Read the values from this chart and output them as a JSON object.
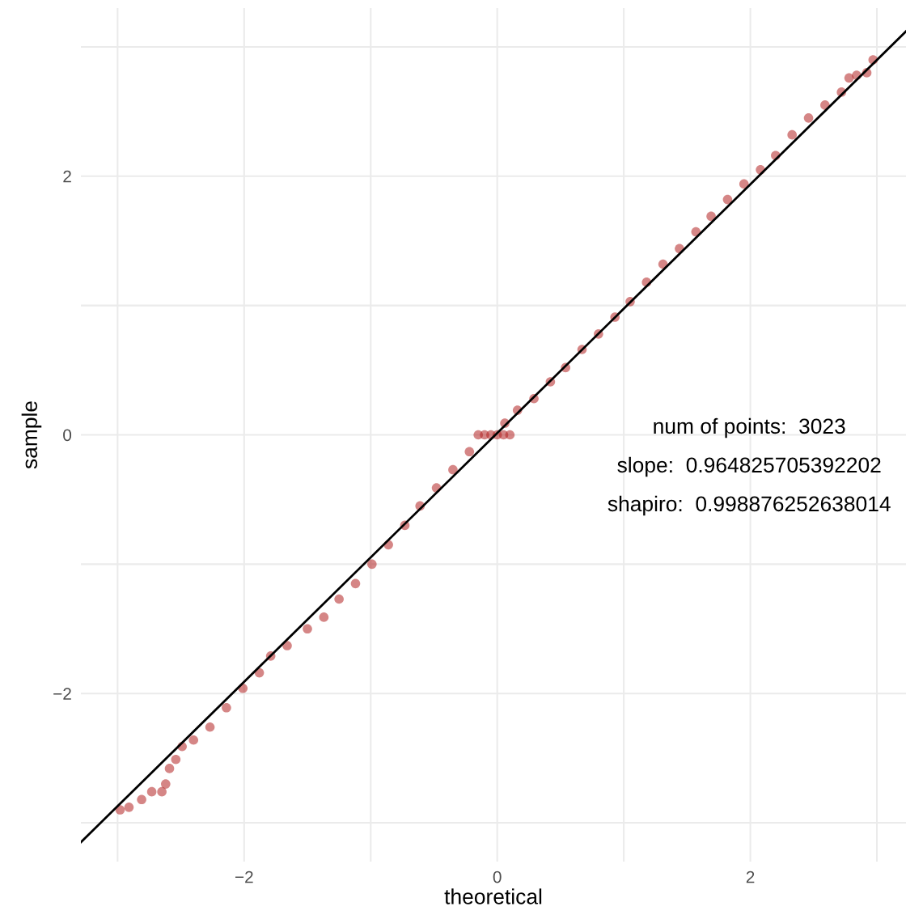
{
  "chart_data": {
    "type": "scatter",
    "xlabel": "theoretical",
    "ylabel": "sample",
    "xlim": [
      -3.29,
      3.23
    ],
    "ylim": [
      -3.3,
      3.3
    ],
    "xticks": [
      {
        "value": -3,
        "label": null
      },
      {
        "value": -2,
        "label": "−2"
      },
      {
        "value": -1,
        "label": null
      },
      {
        "value": 0,
        "label": "0"
      },
      {
        "value": 1,
        "label": null
      },
      {
        "value": 2,
        "label": "2"
      },
      {
        "value": 3,
        "label": null
      }
    ],
    "yticks": [
      {
        "value": -3,
        "label": null
      },
      {
        "value": -2,
        "label": "−2"
      },
      {
        "value": -1,
        "label": null
      },
      {
        "value": 0,
        "label": "0"
      },
      {
        "value": 1,
        "label": null
      },
      {
        "value": 2,
        "label": "2"
      },
      {
        "value": 3,
        "label": null
      }
    ],
    "grid": true,
    "legend": false,
    "series": [
      {
        "marker": "circle",
        "color": "#b22222",
        "x": [
          -2.98,
          -2.91,
          -2.81,
          -2.73,
          -2.65,
          -2.62,
          -2.59,
          -2.54,
          -2.49,
          -2.4,
          -2.27,
          -2.14,
          -2.01,
          -1.88,
          -1.79,
          -1.66,
          -1.5,
          -1.37,
          -1.25,
          -1.12,
          -0.99,
          -0.86,
          -0.73,
          -0.61,
          -0.48,
          -0.35,
          -0.22,
          -0.15,
          -0.1,
          -0.05,
          0.0,
          0.05,
          0.1,
          0.06,
          0.16,
          0.29,
          0.42,
          0.54,
          0.67,
          0.8,
          0.93,
          1.05,
          1.18,
          1.31,
          1.44,
          1.57,
          1.69,
          1.82,
          1.95,
          2.08,
          2.2,
          2.33,
          2.46,
          2.59,
          2.72,
          2.78,
          2.84,
          2.92,
          2.97
        ],
        "values": [
          -2.9,
          -2.88,
          -2.82,
          -2.76,
          -2.76,
          -2.7,
          -2.58,
          -2.51,
          -2.41,
          -2.36,
          -2.26,
          -2.11,
          -1.96,
          -1.84,
          -1.71,
          -1.63,
          -1.5,
          -1.41,
          -1.27,
          -1.15,
          -1.0,
          -0.85,
          -0.7,
          -0.55,
          -0.41,
          -0.27,
          -0.13,
          0.0,
          0.0,
          0.0,
          0.0,
          0.0,
          0.0,
          0.09,
          0.19,
          0.28,
          0.41,
          0.52,
          0.66,
          0.78,
          0.91,
          1.03,
          1.18,
          1.32,
          1.44,
          1.57,
          1.69,
          1.82,
          1.94,
          2.05,
          2.16,
          2.32,
          2.45,
          2.55,
          2.65,
          2.76,
          2.78,
          2.8,
          2.9
        ]
      },
      {
        "type": "line",
        "color": "#000000",
        "x": [
          -3.29,
          3.23
        ],
        "values": [
          -3.15,
          3.12
        ]
      }
    ],
    "annotations": [
      "num of points:  3023",
      "slope:  0.964825705392202",
      "shapiro:  0.998876252638014"
    ]
  }
}
